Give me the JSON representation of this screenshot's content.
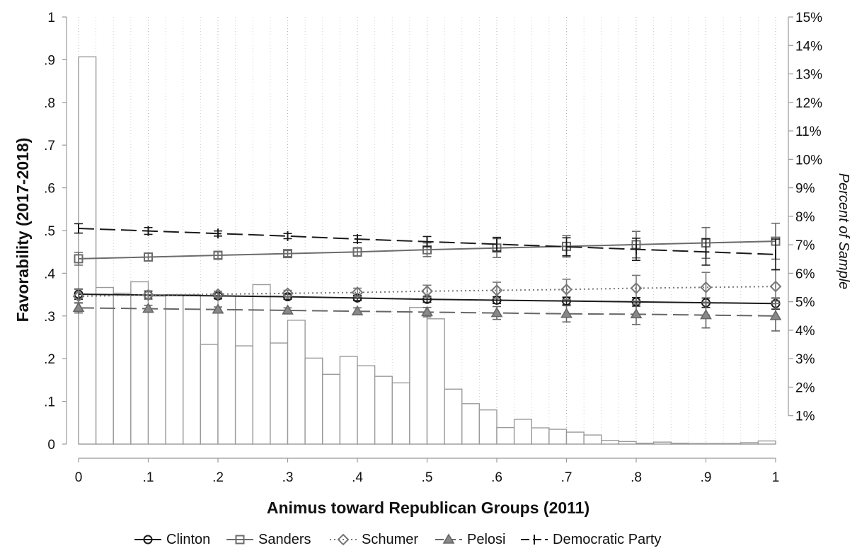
{
  "chart_data": {
    "type": "line",
    "title": "",
    "xlabel": "Animus toward Republican Groups (2011)",
    "ylabel": "Favorability (2017-2018)",
    "y2label": "Percent of Sample",
    "xlim": [
      0,
      1
    ],
    "ylim": [
      0,
      1
    ],
    "y2lim": [
      0,
      15
    ],
    "grid": true,
    "legend_position": "bottom",
    "x_ticks": [
      0,
      0.1,
      0.2,
      0.3,
      0.4,
      0.5,
      0.6,
      0.7,
      0.8,
      0.9,
      1
    ],
    "x_tick_labels": [
      "0",
      ".1",
      ".2",
      ".3",
      ".4",
      ".5",
      ".6",
      ".7",
      ".8",
      ".9",
      "1"
    ],
    "y_ticks": [
      0,
      0.1,
      0.2,
      0.3,
      0.4,
      0.5,
      0.6,
      0.7,
      0.8,
      0.9,
      1
    ],
    "y_tick_labels": [
      "0",
      ".1",
      ".2",
      ".3",
      ".4",
      ".5",
      ".6",
      ".7",
      ".8",
      ".9",
      "1"
    ],
    "y2_ticks": [
      1,
      2,
      3,
      4,
      5,
      6,
      7,
      8,
      9,
      10,
      11,
      12,
      13,
      14,
      15
    ],
    "y2_tick_labels": [
      "1%",
      "2%",
      "3%",
      "4%",
      "5%",
      "6%",
      "7%",
      "8%",
      "9%",
      "10%",
      "11%",
      "12%",
      "13%",
      "14%",
      "15%"
    ],
    "histogram": {
      "bin_width": 0.025,
      "bins": [
        {
          "x": 0.0125,
          "value": 13.6
        },
        {
          "x": 0.0375,
          "value": 5.5
        },
        {
          "x": 0.0625,
          "value": 5.3
        },
        {
          "x": 0.0875,
          "value": 5.7
        },
        {
          "x": 0.1125,
          "value": 5.2
        },
        {
          "x": 0.1375,
          "value": 5.25
        },
        {
          "x": 0.1625,
          "value": 5.25
        },
        {
          "x": 0.1875,
          "value": 3.5
        },
        {
          "x": 0.2125,
          "value": 5.2
        },
        {
          "x": 0.2375,
          "value": 3.45
        },
        {
          "x": 0.2625,
          "value": 5.6
        },
        {
          "x": 0.2875,
          "value": 3.55
        },
        {
          "x": 0.3125,
          "value": 4.35
        },
        {
          "x": 0.3375,
          "value": 3.02
        },
        {
          "x": 0.3625,
          "value": 2.45
        },
        {
          "x": 0.3875,
          "value": 3.08
        },
        {
          "x": 0.4125,
          "value": 2.75
        },
        {
          "x": 0.4375,
          "value": 2.38
        },
        {
          "x": 0.4625,
          "value": 2.15
        },
        {
          "x": 0.4875,
          "value": 4.8
        },
        {
          "x": 0.5125,
          "value": 4.4
        },
        {
          "x": 0.5375,
          "value": 1.93
        },
        {
          "x": 0.5625,
          "value": 1.42
        },
        {
          "x": 0.5875,
          "value": 1.2
        },
        {
          "x": 0.6125,
          "value": 0.58
        },
        {
          "x": 0.6375,
          "value": 0.87
        },
        {
          "x": 0.6625,
          "value": 0.57
        },
        {
          "x": 0.6875,
          "value": 0.52
        },
        {
          "x": 0.7125,
          "value": 0.42
        },
        {
          "x": 0.7375,
          "value": 0.32
        },
        {
          "x": 0.7625,
          "value": 0.13
        },
        {
          "x": 0.7875,
          "value": 0.09
        },
        {
          "x": 0.8125,
          "value": 0.03
        },
        {
          "x": 0.8375,
          "value": 0.07
        },
        {
          "x": 0.8625,
          "value": 0.03
        },
        {
          "x": 0.8875,
          "value": 0.02
        },
        {
          "x": 0.9125,
          "value": 0.02
        },
        {
          "x": 0.9375,
          "value": 0.02
        },
        {
          "x": 0.9625,
          "value": 0.05
        },
        {
          "x": 0.9875,
          "value": 0.11
        }
      ]
    },
    "series": [
      {
        "name": "Clinton",
        "marker": "circle",
        "dash": "solid",
        "color": "#1a1a1a",
        "x": [
          0,
          0.1,
          0.2,
          0.3,
          0.4,
          0.5,
          0.6,
          0.7,
          0.8,
          0.9,
          1
        ],
        "values": [
          0.351,
          0.349,
          0.347,
          0.345,
          0.342,
          0.339,
          0.337,
          0.335,
          0.333,
          0.331,
          0.329
        ],
        "error": [
          0.012,
          0.009,
          0.007,
          0.006,
          0.006,
          0.007,
          0.008,
          0.009,
          0.01,
          0.011,
          0.013
        ]
      },
      {
        "name": "Sanders",
        "marker": "square",
        "dash": "solid",
        "color": "#6b6b6b",
        "x": [
          0,
          0.1,
          0.2,
          0.3,
          0.4,
          0.5,
          0.6,
          0.7,
          0.8,
          0.9,
          1
        ],
        "values": [
          0.434,
          0.438,
          0.442,
          0.446,
          0.45,
          0.455,
          0.459,
          0.463,
          0.467,
          0.471,
          0.475
        ],
        "error": [
          0.015,
          0.009,
          0.008,
          0.007,
          0.01,
          0.016,
          0.022,
          0.025,
          0.031,
          0.036,
          0.042
        ]
      },
      {
        "name": "Schumer",
        "marker": "diamond",
        "dash": "dotted",
        "color": "#777777",
        "x": [
          0,
          0.1,
          0.2,
          0.3,
          0.4,
          0.5,
          0.6,
          0.7,
          0.8,
          0.9,
          1
        ],
        "values": [
          0.346,
          0.349,
          0.351,
          0.353,
          0.355,
          0.358,
          0.36,
          0.362,
          0.365,
          0.367,
          0.369
        ],
        "error": [
          0.016,
          0.01,
          0.007,
          0.007,
          0.01,
          0.014,
          0.019,
          0.024,
          0.03,
          0.035,
          0.04
        ]
      },
      {
        "name": "Pelosi",
        "marker": "triangle",
        "dash": "longdash",
        "color": "#666666",
        "x": [
          0,
          0.1,
          0.2,
          0.3,
          0.4,
          0.5,
          0.6,
          0.7,
          0.8,
          0.9,
          1
        ],
        "values": [
          0.319,
          0.317,
          0.315,
          0.313,
          0.311,
          0.309,
          0.307,
          0.305,
          0.304,
          0.302,
          0.3
        ],
        "error": [
          0.012,
          0.008,
          0.006,
          0.006,
          0.008,
          0.011,
          0.015,
          0.019,
          0.024,
          0.03,
          0.035
        ]
      },
      {
        "name": "Democratic Party",
        "marker": "plus",
        "dash": "dashdot",
        "color": "#1a1a1a",
        "x": [
          0,
          0.1,
          0.2,
          0.3,
          0.4,
          0.5,
          0.6,
          0.7,
          0.8,
          0.9,
          1
        ],
        "values": [
          0.505,
          0.499,
          0.493,
          0.487,
          0.48,
          0.474,
          0.468,
          0.462,
          0.456,
          0.45,
          0.444
        ],
        "error": [
          0.011,
          0.008,
          0.006,
          0.006,
          0.008,
          0.012,
          0.016,
          0.021,
          0.026,
          0.031,
          0.036
        ]
      }
    ]
  }
}
